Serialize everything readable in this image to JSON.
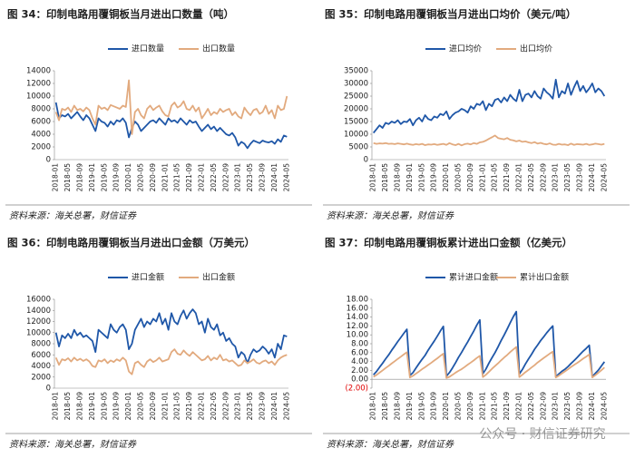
{
  "chart_data": [
    {
      "type": "line",
      "title": "图 34：印制电路用覆铜板当月进出口数量（吨）",
      "source": "资料来源：海关总署，财信证券",
      "categories": [
        "2018-01",
        null,
        null,
        null,
        "2018-05",
        null,
        null,
        null,
        "2018-09",
        null,
        null,
        null,
        "2019-01",
        null,
        null,
        null,
        "2019-05",
        null,
        null,
        null,
        "2019-09",
        null,
        null,
        null,
        "2020-01",
        null,
        null,
        null,
        "2020-05",
        null,
        null,
        null,
        "2020-09",
        null,
        null,
        null,
        "2021-01",
        null,
        null,
        null,
        "2021-05",
        null,
        null,
        null,
        "2021-09",
        null,
        null,
        null,
        "2022-01",
        null,
        null,
        null,
        "2022-05",
        null,
        null,
        null,
        "2022-09",
        null,
        null,
        null,
        "2023-01",
        null,
        null,
        null,
        "2023-05",
        null,
        null,
        null,
        "2023-09",
        null,
        null,
        null,
        "2024-01",
        null,
        null,
        null,
        "2024-05"
      ],
      "ylim": [
        0,
        14000
      ],
      "yticks": [
        0,
        2000,
        4000,
        6000,
        8000,
        10000,
        12000,
        14000
      ],
      "legend": "top",
      "series": [
        {
          "name": "进口数量",
          "color": "#1f57a8",
          "values": [
            9000,
            6500,
            7000,
            6800,
            7200,
            6500,
            7000,
            7500,
            6800,
            6200,
            7000,
            6500,
            5500,
            4500,
            6500,
            6000,
            5800,
            5200,
            6000,
            5500,
            6200,
            6000,
            6500,
            5800,
            3500,
            5000,
            6000,
            5500,
            4500,
            5000,
            5500,
            6000,
            6200,
            5800,
            6500,
            6000,
            5500,
            6500,
            6000,
            6200,
            5800,
            6500,
            6000,
            5500,
            6200,
            5800,
            6000,
            5200,
            4500,
            5000,
            5500,
            4800,
            5200,
            4500,
            5000,
            4500,
            4000,
            3800,
            4200,
            3500,
            2200,
            2800,
            2500,
            1800,
            2500,
            3000,
            2800,
            2600,
            3000,
            2800,
            2700,
            2900,
            2500,
            3200,
            2800,
            3800,
            3600
          ]
        },
        {
          "name": "出口数量",
          "color": "#e2aa7e",
          "values": [
            7500,
            6200,
            8000,
            7800,
            8200,
            7500,
            8500,
            7800,
            8000,
            7600,
            8200,
            7800,
            6500,
            5500,
            8500,
            8000,
            8200,
            7800,
            8600,
            8400,
            8200,
            8000,
            8500,
            8300,
            12500,
            4000,
            7500,
            8000,
            7000,
            6500,
            8000,
            8500,
            7800,
            8200,
            8500,
            7600,
            7000,
            6800,
            8500,
            9000,
            8200,
            8500,
            9200,
            8000,
            7800,
            8500,
            7600,
            8200,
            6500,
            7200,
            8000,
            7000,
            7500,
            7200,
            8000,
            7500,
            7800,
            8000,
            7000,
            7500,
            6800,
            6500,
            8200,
            7500,
            7000,
            7800,
            8000,
            7200,
            7500,
            8500,
            7200,
            7800,
            6500,
            8500,
            7800,
            8000,
            10000
          ]
        }
      ]
    },
    {
      "type": "line",
      "title": "图 35：印制电路用覆铜板当月进出口均价（美元/吨）",
      "source": "资料来源：海关总署，财信证券",
      "categories": [
        "2018-01",
        null,
        null,
        null,
        "2018-05",
        null,
        null,
        null,
        "2018-09",
        null,
        null,
        null,
        "2019-01",
        null,
        null,
        null,
        "2019-05",
        null,
        null,
        null,
        "2019-09",
        null,
        null,
        null,
        "2020-01",
        null,
        null,
        null,
        "2020-05",
        null,
        null,
        null,
        "2020-09",
        null,
        null,
        null,
        "2021-01",
        null,
        null,
        null,
        "2021-05",
        null,
        null,
        null,
        "2021-09",
        null,
        null,
        null,
        "2022-01",
        null,
        null,
        null,
        "2022-05",
        null,
        null,
        null,
        "2022-09",
        null,
        null,
        null,
        "2023-01",
        null,
        null,
        null,
        "2023-05",
        null,
        null,
        null,
        "2023-09",
        null,
        null,
        null,
        "2024-01",
        null,
        null,
        null,
        "2024-05"
      ],
      "ylim": [
        0,
        35000
      ],
      "yticks": [
        0,
        5000,
        10000,
        15000,
        20000,
        25000,
        30000,
        35000
      ],
      "legend": "top",
      "series": [
        {
          "name": "进口均价",
          "color": "#1f57a8",
          "values": [
            10500,
            12000,
            13500,
            12500,
            14500,
            14000,
            15000,
            14500,
            15500,
            14000,
            15000,
            14800,
            16000,
            13500,
            15500,
            16500,
            15000,
            17500,
            16000,
            15500,
            17000,
            16500,
            18000,
            17500,
            19000,
            16000,
            17500,
            18500,
            19000,
            20000,
            19500,
            18500,
            21000,
            20000,
            22000,
            21500,
            23000,
            19500,
            22000,
            21000,
            23500,
            24000,
            22500,
            24500,
            23000,
            25500,
            24000,
            23000,
            27500,
            23000,
            25500,
            26000,
            24500,
            27000,
            25000,
            24000,
            28000,
            26500,
            25500,
            24000,
            31500,
            24500,
            27000,
            26000,
            30000,
            25500,
            28500,
            31000,
            27000,
            29000,
            26500,
            28000,
            30000,
            26500,
            28000,
            27000,
            25000
          ]
        },
        {
          "name": "出口均价",
          "color": "#e2aa7e",
          "values": [
            6500,
            6200,
            6400,
            6300,
            6500,
            6200,
            6300,
            6100,
            6400,
            6200,
            6000,
            6300,
            6000,
            5800,
            6100,
            5900,
            6200,
            5700,
            6000,
            5900,
            6100,
            5800,
            6000,
            6200,
            5800,
            6500,
            6000,
            5700,
            6200,
            5600,
            6100,
            6300,
            6000,
            6500,
            6200,
            6800,
            7000,
            7500,
            8200,
            8800,
            9500,
            8500,
            8200,
            8000,
            8500,
            7800,
            7600,
            7200,
            7500,
            7000,
            7200,
            6800,
            6500,
            6900,
            6300,
            6600,
            6200,
            6000,
            6400,
            5900,
            5800,
            6200,
            5900,
            6000,
            5700,
            6300,
            5800,
            6100,
            6000,
            5900,
            6200,
            5800,
            6000,
            6300,
            6100,
            5900,
            6200
          ]
        }
      ]
    },
    {
      "type": "line",
      "title": "图 36：印制电路用覆铜板当月进出口金额（万美元）",
      "source": "资料来源：海关总署，财信证券",
      "categories": [
        "2018-01",
        null,
        null,
        null,
        "2018-05",
        null,
        null,
        null,
        "2018-09",
        null,
        null,
        null,
        "2019-01",
        null,
        null,
        null,
        "2019-05",
        null,
        null,
        null,
        "2019-09",
        null,
        null,
        null,
        "2020-01",
        null,
        null,
        null,
        "2020-05",
        null,
        null,
        null,
        "2020-09",
        null,
        null,
        null,
        "2021-01",
        null,
        null,
        null,
        "2021-05",
        null,
        null,
        null,
        "2021-09",
        null,
        null,
        null,
        "2022-01",
        null,
        null,
        null,
        "2022-05",
        null,
        null,
        null,
        "2022-09",
        null,
        null,
        null,
        "2023-01",
        null,
        null,
        null,
        "2023-05",
        null,
        null,
        null,
        "2023-09",
        null,
        null,
        null,
        "2024-01",
        null,
        null,
        null,
        "2024-05"
      ],
      "ylim": [
        0,
        16000
      ],
      "yticks": [
        0,
        2000,
        4000,
        6000,
        8000,
        10000,
        12000,
        14000,
        16000
      ],
      "legend": "top",
      "series": [
        {
          "name": "进口金额",
          "color": "#1f57a8",
          "values": [
            10000,
            7500,
            9500,
            9000,
            9800,
            9000,
            10500,
            9500,
            10000,
            9200,
            9500,
            9000,
            8500,
            6500,
            10500,
            10000,
            9500,
            9000,
            11500,
            10500,
            10000,
            11000,
            11500,
            10500,
            7000,
            8000,
            10500,
            11500,
            12500,
            11000,
            12000,
            11500,
            12500,
            12000,
            13500,
            11500,
            12500,
            10500,
            13500,
            12000,
            11500,
            13000,
            14000,
            12500,
            13500,
            14200,
            13500,
            11500,
            12000,
            10000,
            12500,
            11000,
            10500,
            11500,
            9500,
            10000,
            8500,
            9000,
            8000,
            7500,
            5500,
            6500,
            6000,
            4500,
            6000,
            7000,
            6500,
            6800,
            7500,
            7000,
            6200,
            7000,
            5500,
            8000,
            7000,
            9500,
            9300
          ]
        },
        {
          "name": "出口金额",
          "color": "#e2aa7e",
          "values": [
            5500,
            4200,
            5200,
            5000,
            5400,
            4800,
            5500,
            5000,
            5300,
            4900,
            5200,
            4800,
            4000,
            3800,
            5000,
            4800,
            5200,
            4500,
            5000,
            4700,
            5200,
            4900,
            5500,
            5000,
            3000,
            2500,
            4500,
            4800,
            4200,
            3800,
            4800,
            5200,
            4700,
            5000,
            5500,
            4800,
            5000,
            5200,
            6500,
            7000,
            6200,
            6000,
            6800,
            6200,
            5800,
            6500,
            6000,
            5500,
            5000,
            5200,
            5800,
            5000,
            5500,
            5200,
            6000,
            5000,
            5200,
            4800,
            5000,
            4500,
            4000,
            4200,
            5000,
            4500,
            4800,
            5200,
            4600,
            4400,
            4800,
            5000,
            4500,
            4800,
            4200,
            5000,
            5500,
            5800,
            6000
          ]
        }
      ]
    },
    {
      "type": "line",
      "title": "图 37：印制电路用覆铜板累计进出口金额（亿美元）",
      "source": "资料来源：海关总署，财信证券",
      "categories": [
        "2018-01",
        null,
        null,
        null,
        "2018-05",
        null,
        null,
        null,
        "2018-09",
        null,
        null,
        null,
        "2019-01",
        null,
        null,
        null,
        "2019-05",
        null,
        null,
        null,
        "2019-09",
        null,
        null,
        null,
        "2020-01",
        null,
        null,
        null,
        "2020-05",
        null,
        null,
        null,
        "2020-09",
        null,
        null,
        null,
        "2021-01",
        null,
        null,
        null,
        "2021-05",
        null,
        null,
        null,
        "2021-09",
        null,
        null,
        null,
        "2022-01",
        null,
        null,
        null,
        "2022-05",
        null,
        null,
        null,
        "2022-09",
        null,
        null,
        null,
        "2023-01",
        null,
        null,
        null,
        "2023-05",
        null,
        null,
        null,
        "2023-09",
        null,
        null,
        null,
        "2024-01",
        null,
        null,
        null,
        "2024-05"
      ],
      "ylim": [
        -2,
        18
      ],
      "negative_label_color": "#e00000",
      "yticks": [
        {
          "value": -2,
          "label": "(2.00)"
        },
        {
          "value": 0,
          "label": "0.00"
        },
        {
          "value": 2,
          "label": "2.00"
        },
        {
          "value": 4,
          "label": "4.00"
        },
        {
          "value": 6,
          "label": "6.00"
        },
        {
          "value": 8,
          "label": "8.00"
        },
        {
          "value": 10,
          "label": "10.00"
        },
        {
          "value": 12,
          "label": "12.00"
        },
        {
          "value": 14,
          "label": "14.00"
        },
        {
          "value": 16,
          "label": "16.00"
        },
        {
          "value": 18,
          "label": "18.00"
        }
      ],
      "legend": "top",
      "series": [
        {
          "name": "累计进口金额",
          "color": "#1f57a8",
          "values": [
            1.0,
            1.75,
            2.7,
            3.6,
            4.58,
            5.48,
            6.53,
            7.48,
            8.48,
            9.4,
            10.35,
            11.25,
            0.85,
            1.5,
            2.55,
            3.55,
            4.5,
            5.4,
            6.55,
            7.6,
            8.6,
            9.7,
            10.85,
            11.9,
            0.7,
            1.5,
            2.55,
            3.7,
            4.95,
            6.05,
            7.25,
            8.4,
            9.65,
            10.85,
            12.2,
            13.35,
            1.25,
            2.3,
            3.65,
            4.85,
            6.0,
            7.3,
            8.7,
            9.95,
            11.3,
            12.72,
            14.07,
            15.22,
            1.2,
            2.2,
            3.45,
            4.55,
            5.6,
            6.75,
            7.7,
            8.7,
            9.55,
            10.45,
            11.25,
            12.0,
            0.55,
            1.2,
            1.8,
            2.25,
            2.85,
            3.55,
            4.2,
            4.88,
            5.63,
            6.33,
            6.95,
            7.65,
            0.55,
            1.35,
            2.05,
            3.0,
            3.93
          ]
        },
        {
          "name": "累计出口金额",
          "color": "#e2aa7e",
          "values": [
            0.55,
            0.97,
            1.49,
            1.99,
            2.53,
            3.01,
            3.56,
            4.06,
            4.59,
            5.08,
            5.6,
            6.08,
            0.4,
            0.78,
            1.28,
            1.76,
            2.28,
            2.73,
            3.23,
            3.7,
            4.22,
            4.71,
            5.26,
            5.76,
            0.3,
            0.55,
            1.0,
            1.48,
            1.9,
            2.28,
            2.76,
            3.28,
            3.75,
            4.25,
            4.8,
            5.28,
            0.5,
            1.02,
            1.67,
            2.37,
            2.99,
            3.59,
            4.27,
            4.89,
            5.47,
            6.12,
            6.72,
            7.27,
            0.5,
            1.02,
            1.6,
            2.1,
            2.65,
            3.17,
            3.77,
            4.27,
            4.79,
            5.27,
            5.77,
            6.22,
            0.4,
            0.82,
            1.32,
            1.77,
            2.25,
            2.77,
            3.23,
            3.67,
            4.15,
            4.65,
            5.1,
            5.58,
            0.42,
            0.92,
            1.47,
            2.05,
            2.65
          ]
        }
      ]
    }
  ],
  "watermark": "公众号 · 财信证券研究"
}
